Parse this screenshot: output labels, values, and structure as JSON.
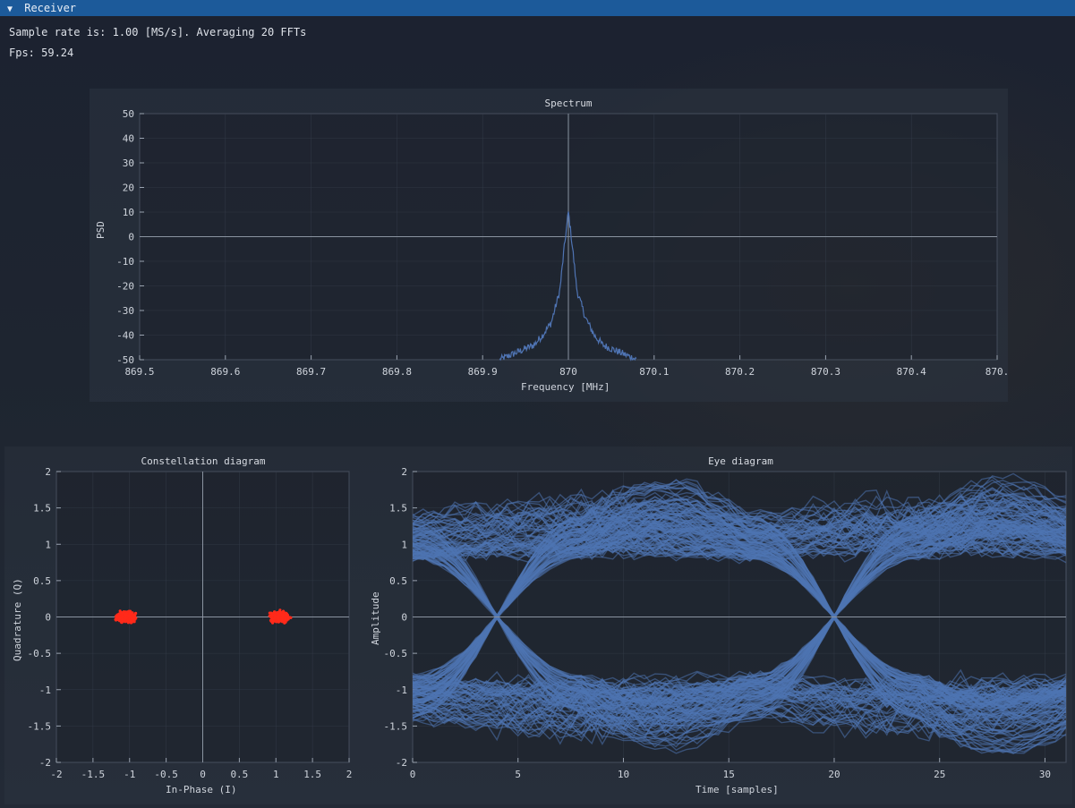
{
  "window": {
    "title": "Receiver"
  },
  "info": {
    "sample_rate": "Sample rate is: 1.00 [MS/s]. Averaging 20 FFTs",
    "fps": "Fps: 59.24"
  },
  "spectrum": {
    "title": "Spectrum",
    "xlabel": "Frequency [MHz]",
    "ylabel": "PSD",
    "xticks": [
      "869.5",
      "869.6",
      "869.7",
      "869.8",
      "869.9",
      "870",
      "870.1",
      "870.2",
      "870.3",
      "870.4",
      "870."
    ],
    "yticks": [
      "50",
      "40",
      "30",
      "20",
      "10",
      "0",
      "-10",
      "-20",
      "-30",
      "-40",
      "-50"
    ]
  },
  "constellation": {
    "title": "Constellation diagram",
    "xlabel": "In-Phase (I)",
    "ylabel": "Quadrature (Q)",
    "xticks": [
      "-2",
      "-1.5",
      "-1",
      "-0.5",
      "0",
      "0.5",
      "1",
      "1.5",
      "2"
    ],
    "yticks": [
      "2",
      "1.5",
      "1",
      "0.5",
      "0",
      "-0.5",
      "-1",
      "-1.5",
      "-2"
    ]
  },
  "eye": {
    "title": "Eye diagram",
    "xlabel": "Time [samples]",
    "ylabel": "Amplitude",
    "xticks": [
      "0",
      "5",
      "10",
      "15",
      "20",
      "25",
      "30"
    ],
    "yticks": [
      "2",
      "1.5",
      "1",
      "0.5",
      "0",
      "-0.5",
      "-1",
      "-1.5",
      "-2"
    ]
  },
  "colors": {
    "titlebar": "#1c5a9a",
    "trace": "#4f74b3",
    "points": "#ff2a1a",
    "grid": "#3a4250"
  },
  "chart_data": [
    {
      "type": "line",
      "title": "Spectrum",
      "xlabel": "Frequency [MHz]",
      "ylabel": "PSD",
      "xlim": [
        869.5,
        870.5
      ],
      "ylim": [
        -50,
        50
      ],
      "grid": true,
      "series": [
        {
          "x": [
            869.92,
            869.94,
            869.96,
            869.97,
            869.98,
            869.99,
            869.995,
            870.0,
            870.005,
            870.01,
            870.02,
            870.03,
            870.04,
            870.06,
            870.08
          ],
          "y": [
            -50,
            -47,
            -44,
            -40,
            -35,
            -22,
            -5,
            10,
            -5,
            -22,
            -33,
            -40,
            -44,
            -47,
            -50
          ]
        }
      ]
    },
    {
      "type": "scatter",
      "title": "Constellation diagram",
      "xlabel": "In-Phase (I)",
      "ylabel": "Quadrature (Q)",
      "xlim": [
        -2,
        2
      ],
      "ylim": [
        -2,
        2
      ],
      "grid": true,
      "clusters": [
        {
          "center": [
            -1.05,
            0.0
          ],
          "spread_i": 0.25,
          "spread_q": 0.12
        },
        {
          "center": [
            1.05,
            0.0
          ],
          "spread_i": 0.25,
          "spread_q": 0.12
        }
      ]
    },
    {
      "type": "line",
      "title": "Eye diagram",
      "xlabel": "Time [samples]",
      "ylabel": "Amplitude",
      "xlim": [
        0,
        31
      ],
      "ylim": [
        -2,
        2
      ],
      "grid": true,
      "symbol_centers": [
        0,
        16,
        32
      ],
      "crossings": [
        4,
        20
      ],
      "levels": [
        -1,
        1
      ],
      "overshoot": 0.4
    }
  ]
}
